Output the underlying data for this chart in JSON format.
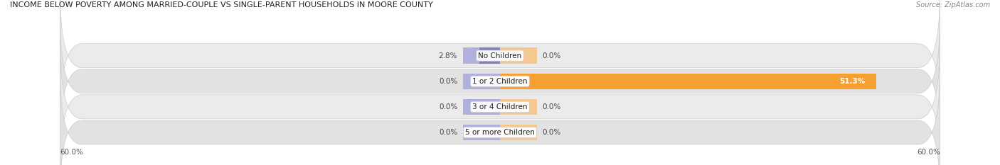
{
  "title": "INCOME BELOW POVERTY AMONG MARRIED-COUPLE VS SINGLE-PARENT HOUSEHOLDS IN MOORE COUNTY",
  "source": "Source: ZipAtlas.com",
  "categories": [
    "No Children",
    "1 or 2 Children",
    "3 or 4 Children",
    "5 or more Children"
  ],
  "married_couples": [
    2.8,
    0.0,
    0.0,
    0.0
  ],
  "single_parents": [
    0.0,
    51.3,
    0.0,
    0.0
  ],
  "max_val": 60.0,
  "married_color": "#8080c0",
  "married_stub_color": "#b0b0dd",
  "single_color": "#f5a030",
  "single_stub_color": "#f5c890",
  "row_bg_even": "#ebebeb",
  "row_bg_odd": "#e2e2e2",
  "row_border_color": "#cccccc",
  "axis_label_left": "60.0%",
  "axis_label_right": "60.0%",
  "stub_min": 5.0
}
